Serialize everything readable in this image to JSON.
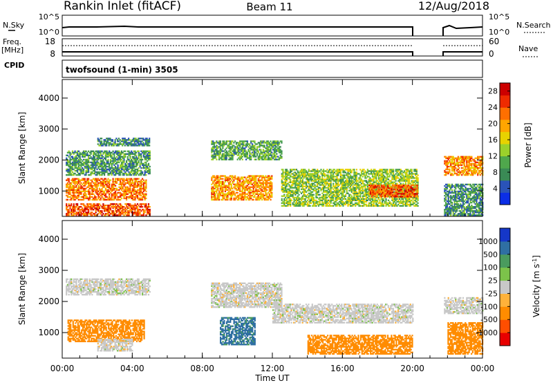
{
  "header": {
    "station": "Rankin Inlet (fitACF)",
    "beam": "Beam 11",
    "date": "12/Aug/2018"
  },
  "strips": {
    "nsky": {
      "label": "N.Sky",
      "ticks": [
        "10^5",
        "10^0"
      ],
      "right_label": "N.Search",
      "right_ticks": [
        "10^5",
        "10^0"
      ]
    },
    "freq": {
      "label_line1": "Freq.",
      "label_line2": "[MHz]",
      "ticks": [
        "18",
        "8"
      ],
      "right_label": "Nave",
      "right_ticks": [
        "60",
        "0"
      ]
    },
    "cpid": {
      "label": "CPID",
      "mode": "twofsound (1-min) 3505"
    }
  },
  "colors": {
    "power": [
      "#0b2ee6",
      "#2a53b8",
      "#3a8a55",
      "#4fa74c",
      "#9bd12b",
      "#e8d200",
      "#ffa500",
      "#ff6f00",
      "#ee2b00",
      "#cc0000"
    ],
    "velocity": [
      "#e80000",
      "#ff4e00",
      "#ff8c00",
      "#ffb23a",
      "#c8c8c8",
      "#7cc34a",
      "#4a9b5e",
      "#2f6fa3",
      "#1537c8"
    ]
  },
  "chart_data": [
    {
      "type": "heatmap",
      "panel": "power",
      "ylabel": "Slant Range [km]",
      "ylim": [
        180,
        4600
      ],
      "yticks": [
        "1000",
        "2000",
        "3000",
        "4000"
      ],
      "xlim": [
        0,
        24
      ],
      "xticks": [
        "00:00",
        "04:00",
        "08:00",
        "12:00",
        "16:00",
        "20:00",
        "00:00"
      ],
      "colorbar_label": "Power [dB]",
      "colorbar_ticks": [
        "4",
        "8",
        "12",
        "16",
        "20",
        "24",
        "28"
      ],
      "colorbar_range": [
        0,
        30
      ],
      "data_gaps_hours": [
        [
          20.3,
          21.8
        ]
      ],
      "echo_regions": [
        {
          "t0": 0.2,
          "t1": 4.8,
          "r0": 700,
          "r1": 1400,
          "value": 22
        },
        {
          "t0": 0.2,
          "t1": 5.0,
          "r0": 1500,
          "r1": 2300,
          "value": 9
        },
        {
          "t0": 2.0,
          "t1": 5.0,
          "r0": 2450,
          "r1": 2700,
          "value": 8
        },
        {
          "t0": 0.2,
          "t1": 5.0,
          "r0": 200,
          "r1": 600,
          "value": 24
        },
        {
          "t0": 8.5,
          "t1": 12.5,
          "r0": 2000,
          "r1": 2600,
          "value": 10
        },
        {
          "t0": 8.5,
          "t1": 12.0,
          "r0": 700,
          "r1": 1500,
          "value": 20
        },
        {
          "t0": 12.5,
          "t1": 20.3,
          "r0": 500,
          "r1": 1700,
          "value": 13
        },
        {
          "t0": 17.5,
          "t1": 20.3,
          "r0": 800,
          "r1": 1200,
          "value": 24
        },
        {
          "t0": 21.8,
          "t1": 24.0,
          "r0": 1500,
          "r1": 2100,
          "value": 21
        },
        {
          "t0": 21.8,
          "t1": 24.0,
          "r0": 200,
          "r1": 1200,
          "value": 8
        }
      ]
    },
    {
      "type": "heatmap",
      "panel": "velocity",
      "ylabel": "Slant Range [km]",
      "ylim": [
        180,
        4600
      ],
      "yticks": [
        "1000",
        "2000",
        "3000",
        "4000"
      ],
      "xlim": [
        0,
        24
      ],
      "xticks": [
        "00:00",
        "04:00",
        "08:00",
        "12:00",
        "16:00",
        "20:00",
        "00:00"
      ],
      "xlabel": "Time UT",
      "colorbar_label": "Velocity [m s-1]",
      "colorbar_ticks": [
        "1000",
        "500",
        "100",
        "25",
        "-25",
        "-100",
        "-500",
        "-1000"
      ],
      "colorbar_range": [
        -1000,
        1000
      ],
      "data_gaps_hours": [
        [
          20.3,
          21.8
        ]
      ],
      "echo_regions": [
        {
          "t0": 0.2,
          "t1": 5.0,
          "r0": 2200,
          "r1": 2700,
          "value": 0
        },
        {
          "t0": 0.3,
          "t1": 4.7,
          "r0": 700,
          "r1": 1400,
          "value": -300
        },
        {
          "t0": 2.0,
          "t1": 4.0,
          "r0": 400,
          "r1": 800,
          "value": 0
        },
        {
          "t0": 8.5,
          "t1": 12.5,
          "r0": 1800,
          "r1": 2600,
          "value": 0
        },
        {
          "t0": 9.0,
          "t1": 11.0,
          "r0": 600,
          "r1": 1500,
          "value": 600
        },
        {
          "t0": 12.0,
          "t1": 20.0,
          "r0": 1300,
          "r1": 1900,
          "value": 0
        },
        {
          "t0": 14.0,
          "t1": 20.0,
          "r0": 300,
          "r1": 900,
          "value": -250
        },
        {
          "t0": 21.8,
          "t1": 24.0,
          "r0": 1600,
          "r1": 2100,
          "value": 0
        },
        {
          "t0": 22.0,
          "t1": 24.0,
          "r0": 300,
          "r1": 1300,
          "value": -250
        }
      ]
    }
  ]
}
